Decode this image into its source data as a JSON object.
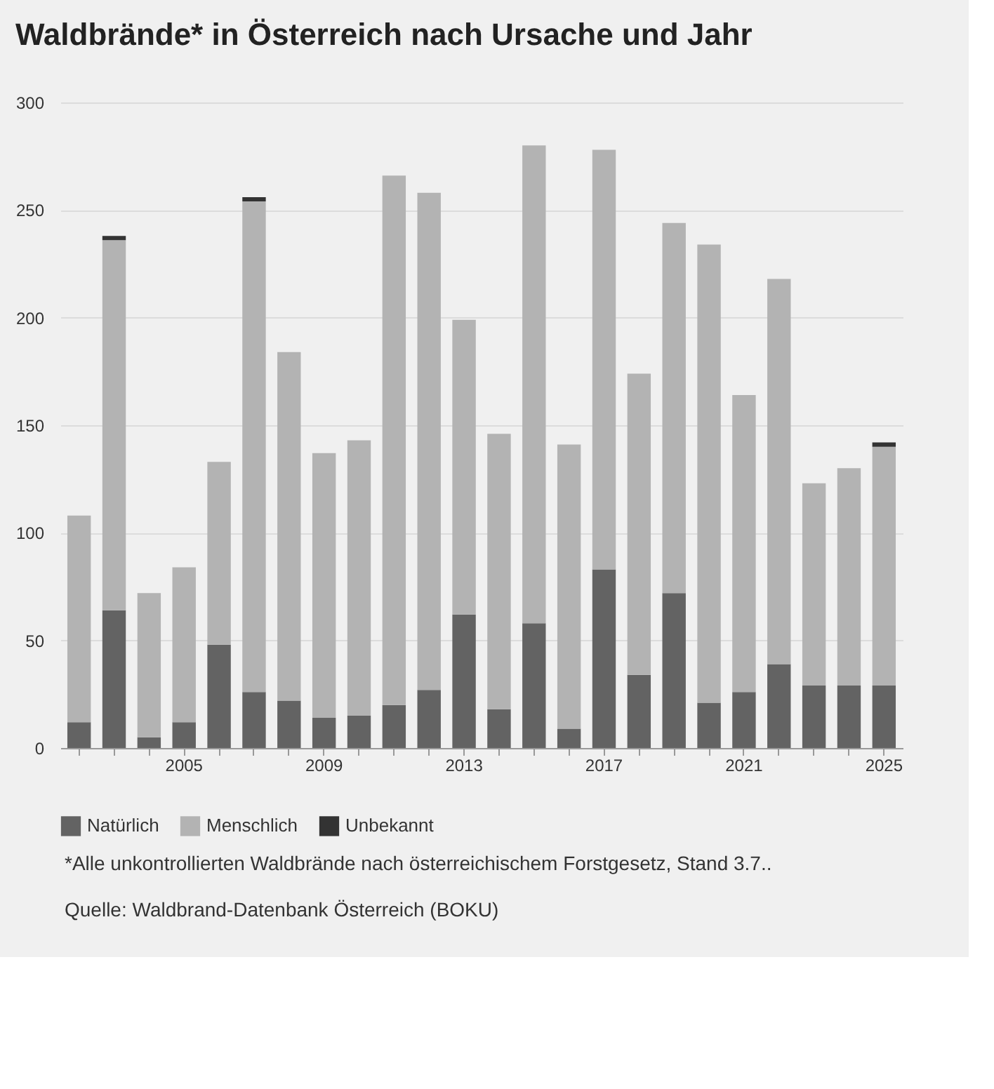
{
  "chart_data": {
    "type": "bar",
    "title": "Waldbrände* in Österreich nach Ursache und Jahr",
    "categories": [
      null,
      null,
      null,
      "2005",
      null,
      null,
      null,
      "2009",
      null,
      null,
      null,
      "2013",
      null,
      null,
      null,
      "2017",
      null,
      null,
      null,
      "2021",
      null,
      null,
      null,
      "2025"
    ],
    "series": [
      {
        "name": "Natürlich",
        "color": "#636363",
        "values": [
          12,
          64,
          5,
          12,
          48,
          26,
          22,
          14,
          15,
          20,
          27,
          62,
          18,
          58,
          9,
          83,
          34,
          72,
          21,
          26,
          39,
          29,
          29,
          29
        ]
      },
      {
        "name": "Menschlich",
        "color": "#b3b3b3",
        "values": [
          96,
          172,
          67,
          72,
          85,
          228,
          162,
          123,
          128,
          246,
          231,
          137,
          128,
          222,
          132,
          195,
          140,
          172,
          213,
          138,
          179,
          94,
          101,
          111
        ]
      },
      {
        "name": "Unbekannt",
        "color": "#333333",
        "values": [
          null,
          2,
          null,
          null,
          null,
          2,
          null,
          null,
          null,
          null,
          null,
          null,
          null,
          null,
          null,
          null,
          null,
          null,
          null,
          null,
          null,
          null,
          null,
          2
        ]
      }
    ],
    "stacked": true,
    "ylim": [
      0,
      300
    ],
    "yticks": [
      0,
      50,
      100,
      150,
      200,
      250,
      300
    ],
    "grid": "y",
    "legend": "bottom left",
    "annotations": [
      "*Alle unkontrollierten Waldbrände nach österreichischem Forstgesetz, Stand 3.7..",
      "Quelle: Waldbrand-Datenbank Österreich (BOKU)"
    ]
  }
}
